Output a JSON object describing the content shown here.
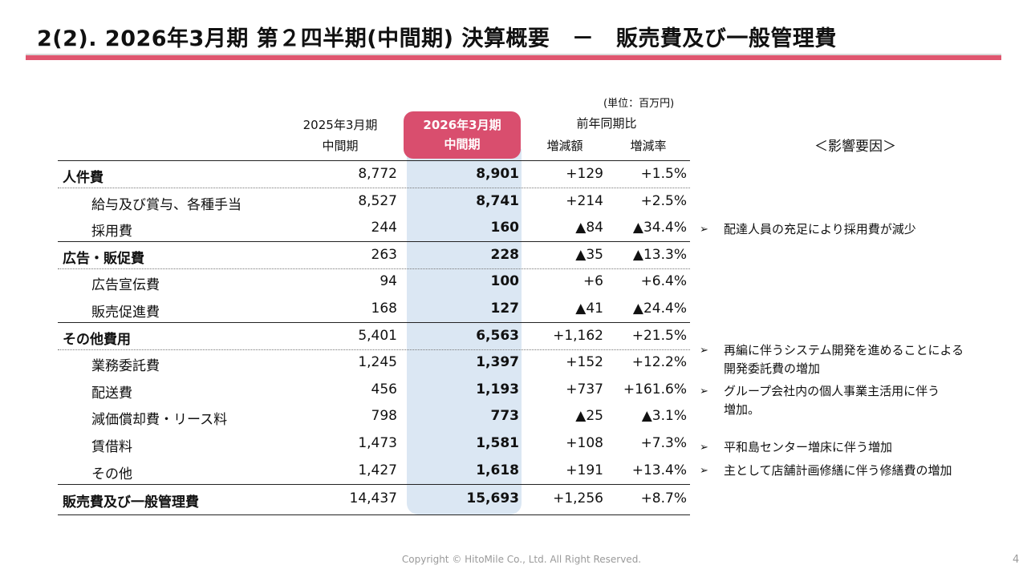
{
  "title": "2(2).  2026年3月期 第２四半期(中間期) 決算概要　－　販売費及び一般管理費",
  "unit_note": "(単位：百万円)",
  "columns": {
    "prev_line1": "2025年3月期",
    "prev_line2": "中間期",
    "curr_line1": "2026年3月期",
    "curr_line2": "中間期",
    "yoy_group": "前年同期比",
    "diff": "増減額",
    "rate": "増減率"
  },
  "rows": [
    {
      "label": "人件費",
      "prev": "8,772",
      "curr": "8,901",
      "diff": "+129",
      "rate": "+1.5%"
    },
    {
      "label": "給与及び賞与、各種手当",
      "prev": "8,527",
      "curr": "8,741",
      "diff": "+214",
      "rate": "+2.5%"
    },
    {
      "label": "採用費",
      "prev": "244",
      "curr": "160",
      "diff": "▲84",
      "rate": "▲34.4%"
    },
    {
      "label": "広告・販促費",
      "prev": "263",
      "curr": "228",
      "diff": "▲35",
      "rate": "▲13.3%"
    },
    {
      "label": "広告宣伝費",
      "prev": "94",
      "curr": "100",
      "diff": "+6",
      "rate": "+6.4%"
    },
    {
      "label": "販売促進費",
      "prev": "168",
      "curr": "127",
      "diff": "▲41",
      "rate": "▲24.4%"
    },
    {
      "label": "その他費用",
      "prev": "5,401",
      "curr": "6,563",
      "diff": "+1,162",
      "rate": "+21.5%"
    },
    {
      "label": "業務委託費",
      "prev": "1,245",
      "curr": "1,397",
      "diff": "+152",
      "rate": "+12.2%"
    },
    {
      "label": "配送費",
      "prev": "456",
      "curr": "1,193",
      "diff": "+737",
      "rate": "+161.6%"
    },
    {
      "label": "減価償却費・リース料",
      "prev": "798",
      "curr": "773",
      "diff": "▲25",
      "rate": "▲3.1%"
    },
    {
      "label": "賃借料",
      "prev": "1,473",
      "curr": "1,581",
      "diff": "+108",
      "rate": "+7.3%"
    },
    {
      "label": "その他",
      "prev": "1,427",
      "curr": "1,618",
      "diff": "+191",
      "rate": "+13.4%"
    },
    {
      "label": "販売費及び一般管理費",
      "prev": "14,437",
      "curr": "15,693",
      "diff": "+1,256",
      "rate": "+8.7%"
    }
  ],
  "factors": {
    "title": "＜影響要因＞",
    "bullet": "➢",
    "notes": [
      {
        "line1": "配達人員の充足により採用費が減少"
      },
      {
        "line1": "再編に伴うシステム開発を進めることによる",
        "line2": "開発委託費の増加"
      },
      {
        "line1": "グループ会社内の個人事業主活用に伴う",
        "line2": "増加。"
      },
      {
        "line1": "平和島センター増床に伴う増加"
      },
      {
        "line1": "主として店舗計画修繕に伴う修繕費の増加"
      }
    ]
  },
  "footer": "Copyright © HitoMile Co., Ltd. All Right Reserved.",
  "page_number": "4",
  "colors": {
    "accent": "#d94e6e",
    "highlight": "#dbe7f3"
  }
}
